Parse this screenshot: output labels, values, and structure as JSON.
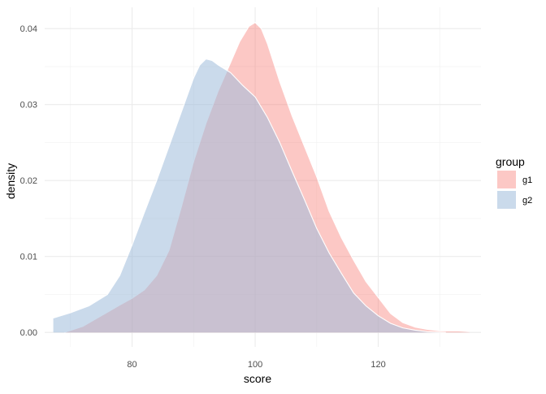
{
  "chart_data": {
    "type": "area",
    "title": "",
    "xlabel": "score",
    "ylabel": "density",
    "xlim": [
      65.8,
      136.7
    ],
    "ylim": [
      -0.0019,
      0.0428
    ],
    "x_ticks": [
      80,
      100,
      120
    ],
    "y_ticks": [
      0.0,
      0.01,
      0.02,
      0.03,
      0.04
    ],
    "x_tick_labels": [
      "80",
      "100",
      "120"
    ],
    "y_tick_labels": [
      "0.00",
      "0.01",
      "0.02",
      "0.03",
      "0.04"
    ],
    "x_minor_ticks": [
      70,
      90,
      110,
      130
    ],
    "y_minor_ticks": [
      0.005,
      0.015,
      0.025,
      0.035
    ],
    "grid": true,
    "legend": {
      "title": "group",
      "position": "right"
    },
    "series": [
      {
        "name": "g1",
        "fill": "#f8766d",
        "opacity": 0.4,
        "x": [
          69.0,
          72.0,
          75.0,
          78.0,
          80.0,
          82.0,
          84.0,
          86.0,
          88.0,
          90.0,
          92.0,
          94.0,
          96.0,
          97.5,
          99.0,
          100.0,
          101.0,
          102.0,
          104.0,
          106.0,
          108.0,
          110.0,
          112.0,
          114.0,
          116.0,
          118.0,
          120.0,
          122.0,
          124.0,
          126.0,
          128.0,
          130.0,
          133.0,
          134.8
        ],
        "y": [
          0.0,
          0.0008,
          0.0022,
          0.0036,
          0.0045,
          0.0056,
          0.0075,
          0.0108,
          0.0165,
          0.0225,
          0.0275,
          0.0318,
          0.0355,
          0.0383,
          0.0403,
          0.0408,
          0.04,
          0.038,
          0.033,
          0.0285,
          0.0245,
          0.0205,
          0.016,
          0.0125,
          0.0095,
          0.0067,
          0.0046,
          0.0025,
          0.0013,
          0.0007,
          0.0004,
          0.0002,
          0.0002,
          0.0001
        ]
      },
      {
        "name": "g2",
        "fill": "#9ebcda",
        "opacity": 0.55,
        "x": [
          67.2,
          70.0,
          73.0,
          76.0,
          78.0,
          80.0,
          82.0,
          84.0,
          86.0,
          88.0,
          90.0,
          91.0,
          92.0,
          93.0,
          94.0,
          96.0,
          98.0,
          100.0,
          102.0,
          104.0,
          106.0,
          108.0,
          110.0,
          112.0,
          114.0,
          116.0,
          118.0,
          120.0,
          122.0,
          124.0,
          126.0,
          128.0,
          131.0
        ],
        "y": [
          0.0019,
          0.0026,
          0.0035,
          0.005,
          0.0075,
          0.0115,
          0.0158,
          0.02,
          0.0245,
          0.029,
          0.0335,
          0.0352,
          0.036,
          0.0358,
          0.0352,
          0.0342,
          0.0325,
          0.031,
          0.0283,
          0.025,
          0.0212,
          0.0175,
          0.0137,
          0.0105,
          0.0078,
          0.0052,
          0.0035,
          0.0022,
          0.0012,
          0.0006,
          0.0003,
          0.0001,
          0.0
        ]
      }
    ]
  }
}
